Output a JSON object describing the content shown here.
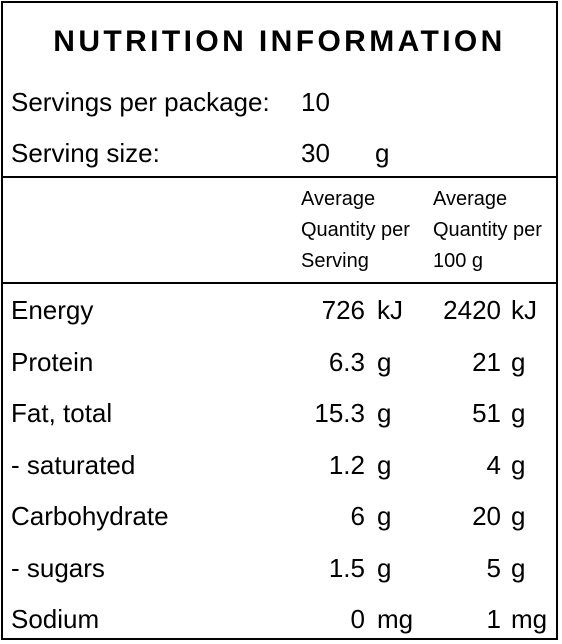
{
  "title": "NUTRITION INFORMATION",
  "servings": {
    "per_package_label": "Servings per package:",
    "per_package_value": "10",
    "size_label": "Serving size:",
    "size_value": "30",
    "size_unit": "g"
  },
  "headers": {
    "per_serving": "Average\nQuantity per\nServing",
    "per_100g": "Average\nQuantity per\n100 g"
  },
  "rows": [
    {
      "name": "Energy",
      "serving_value": "726",
      "serving_unit": "kJ",
      "per100_value": "2420",
      "per100_unit": "kJ"
    },
    {
      "name": "Protein",
      "serving_value": "6.3",
      "serving_unit": "g",
      "per100_value": "21",
      "per100_unit": "g"
    },
    {
      "name": "Fat, total",
      "serving_value": "15.3",
      "serving_unit": "g",
      "per100_value": "51",
      "per100_unit": "g"
    },
    {
      "name": "- saturated",
      "serving_value": "1.2",
      "serving_unit": "g",
      "per100_value": "4",
      "per100_unit": "g"
    },
    {
      "name": "Carbohydrate",
      "serving_value": "6",
      "serving_unit": "g",
      "per100_value": "20",
      "per100_unit": "g"
    },
    {
      "name": "- sugars",
      "serving_value": "1.5",
      "serving_unit": "g",
      "per100_value": "5",
      "per100_unit": "g"
    },
    {
      "name": "Sodium",
      "serving_value": "0",
      "serving_unit": "mg",
      "per100_value": "1",
      "per100_unit": "mg"
    }
  ]
}
